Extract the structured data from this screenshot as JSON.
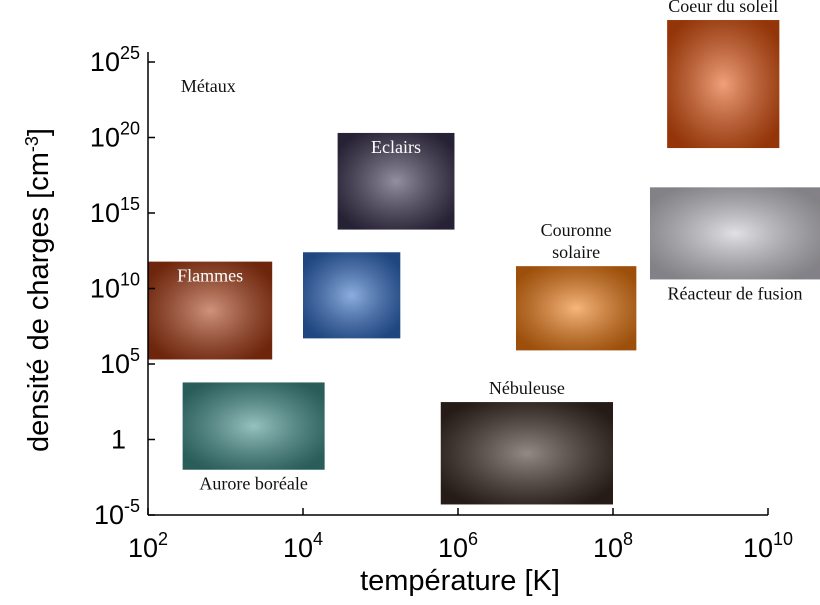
{
  "chart_data": {
    "type": "region",
    "xlabel": "température [K]",
    "ylabel": {
      "text": "densité de charges [cm",
      "sup": "-3",
      "tail": "]"
    },
    "log_x": true,
    "log_y": true,
    "xlim": [
      100,
      10000000000
    ],
    "ylim": [
      1e-05,
      1e+25
    ],
    "xticks": [
      {
        "value": 100,
        "label": "10",
        "exponent": "2"
      },
      {
        "value": 10000,
        "label": "10",
        "exponent": "4"
      },
      {
        "value": 1000000,
        "label": "10",
        "exponent": "6"
      },
      {
        "value": 100000000,
        "label": "10",
        "exponent": "8"
      },
      {
        "value": 10000000000,
        "label": "10",
        "exponent": "10"
      }
    ],
    "yticks": [
      {
        "value": 1e-05,
        "label": "10",
        "exponent": "-5"
      },
      1,
      {
        "value": 100000,
        "label": "10",
        "exponent": "5"
      },
      {
        "value": 10000000000,
        "label": "10",
        "exponent": "10"
      },
      {
        "value": 1000000000000000.0,
        "label": "10",
        "exponent": "15"
      },
      {
        "value": 1e+20,
        "label": "10",
        "exponent": "20"
      },
      {
        "value": 1e+25,
        "label": "10",
        "exponent": "25"
      }
    ],
    "annotations": [
      {
        "text": "Métaux",
        "x": 600,
        "y": 1e+23
      }
    ],
    "regions": [
      {
        "label": [
          "Coeur du soleil"
        ],
        "label_pos": "top",
        "color": "#e2520e",
        "x": [
          500000000,
          14000000000
        ],
        "y": [
          2e+19,
          6e+27
        ]
      },
      {
        "label": [
          "Eclairs"
        ],
        "label_pos": "inside",
        "color": "#3a3350",
        "x": [
          28000,
          900000
        ],
        "y": [
          80000000000000,
          2e+20
        ]
      },
      {
        "label": [
          "Flammes"
        ],
        "label_pos": "inside",
        "color": "#a83a12",
        "x": [
          100,
          4000
        ],
        "y": [
          200000,
          600000000000
        ]
      },
      {
        "label": null,
        "label_pos": "inside",
        "color": "#2f6bc4",
        "x": [
          10000,
          180000
        ],
        "y": [
          5000000,
          2500000000000
        ]
      },
      {
        "label": [
          "Couronne",
          "solaire"
        ],
        "label_pos": "top",
        "color": "#f07a10",
        "x": [
          5600000,
          200000000
        ],
        "y": [
          800000,
          300000000000
        ]
      },
      {
        "label": [
          "Réacteur de fusion"
        ],
        "label_pos": "bottom",
        "color": "#c9c7cf",
        "x": [
          300000000,
          47000000000
        ],
        "y": [
          40000000000,
          50000000000000000
        ]
      },
      {
        "label": [
          "Nébuleuse"
        ],
        "label_pos": "top",
        "color": "#3a2a22",
        "x": [
          600000,
          100000000
        ],
        "y": [
          5e-05,
          300
        ]
      },
      {
        "label": [
          "Aurore boréale"
        ],
        "label_pos": "bottom",
        "color": "#3f8f8a",
        "x": [
          280,
          19000
        ],
        "y": [
          0.01,
          6000
        ]
      }
    ]
  }
}
